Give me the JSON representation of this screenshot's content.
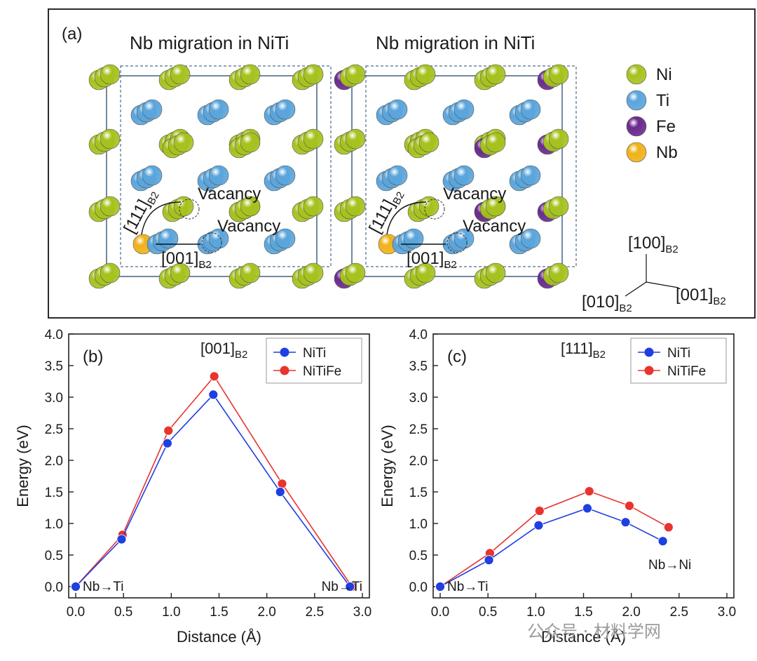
{
  "panel_a": {
    "label": "(a)",
    "left_title": "Nb migration in NiTi",
    "right_title": "Nb migration in NiTi",
    "vacancy": "Vacancy",
    "dir_111": "[111]",
    "dir_001": "[001]",
    "sub_b2": "B2",
    "legend": [
      {
        "name": "Ni",
        "color": "#a6c21e"
      },
      {
        "name": "Ti",
        "color": "#5aa5dc"
      },
      {
        "name": "Fe",
        "color": "#6a2a8e"
      },
      {
        "name": "Nb",
        "color": "#f0b21a"
      }
    ],
    "axes_100": "[100]",
    "axes_010": "[010]",
    "axes_001": "[001]"
  },
  "chart_data": [
    {
      "type": "line",
      "panel_label": "(b)",
      "annotation": "[001]",
      "annotation_sub": "B2",
      "xlabel": "Distance (Å)",
      "ylabel": "Energy (eV)",
      "xlim": [
        0.0,
        3.0
      ],
      "ylim": [
        0.0,
        4.0
      ],
      "xticks": [
        "0.0",
        "0.5",
        "1.0",
        "1.5",
        "2.0",
        "2.5",
        "3.0"
      ],
      "yticks": [
        "0.0",
        "0.5",
        "1.0",
        "1.5",
        "2.0",
        "2.5",
        "3.0",
        "3.5",
        "4.0"
      ],
      "legend_position": "top-right",
      "start_label": "Nb→Ti",
      "end_label": "Nb→Ti",
      "series": [
        {
          "name": "NiTi",
          "color": "#1f3fe0",
          "x": [
            0.0,
            0.48,
            0.96,
            1.44,
            2.14,
            2.87
          ],
          "y": [
            0.0,
            0.75,
            2.27,
            3.04,
            1.5,
            0.0
          ]
        },
        {
          "name": "NiTiFe",
          "color": "#e8332e",
          "x": [
            0.0,
            0.49,
            0.97,
            1.45,
            2.16,
            2.89
          ],
          "y": [
            0.0,
            0.82,
            2.47,
            3.33,
            1.63,
            0.0
          ]
        }
      ]
    },
    {
      "type": "line",
      "panel_label": "(c)",
      "annotation": "[111]",
      "annotation_sub": "B2",
      "xlabel": "Distance (Å)",
      "ylabel": "Energy (eV)",
      "xlim": [
        0.0,
        3.0
      ],
      "ylim": [
        0.0,
        4.0
      ],
      "xticks": [
        "0.0",
        "0.5",
        "1.0",
        "1.5",
        "2.0",
        "2.5",
        "3.0"
      ],
      "yticks": [
        "0.0",
        "0.5",
        "1.0",
        "1.5",
        "2.0",
        "2.5",
        "3.0",
        "3.5",
        "4.0"
      ],
      "legend_position": "top-right",
      "start_label": "Nb→Ti",
      "end_label": "Nb→Ni",
      "series": [
        {
          "name": "NiTi",
          "color": "#1f3fe0",
          "x": [
            0.0,
            0.51,
            1.03,
            1.54,
            1.94,
            2.33
          ],
          "y": [
            0.0,
            0.42,
            0.97,
            1.24,
            1.02,
            0.72
          ]
        },
        {
          "name": "NiTiFe",
          "color": "#e8332e",
          "x": [
            0.0,
            0.52,
            1.04,
            1.56,
            1.98,
            2.39
          ],
          "y": [
            0.0,
            0.53,
            1.2,
            1.51,
            1.28,
            0.94
          ]
        }
      ]
    }
  ],
  "watermark": "公众号 · 材料学网"
}
